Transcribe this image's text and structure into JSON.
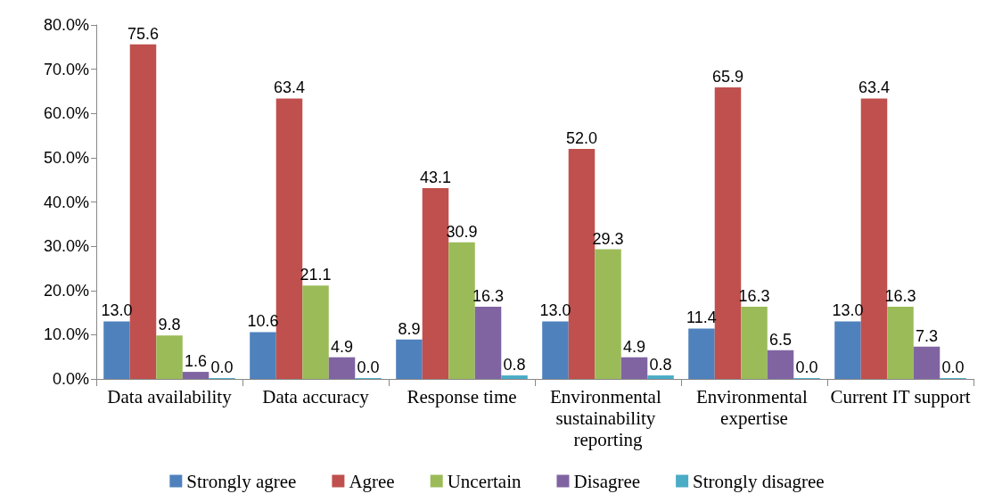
{
  "chart_data": {
    "type": "bar",
    "categories": [
      "Data availability",
      "Data accuracy",
      "Response time",
      "Environmental sustainability reporting",
      "Environmental expertise",
      "Current IT support"
    ],
    "series": [
      {
        "name": "Strongly agree",
        "color": "#4f81bd",
        "values": [
          13.0,
          10.6,
          8.9,
          13.0,
          11.4,
          13.0
        ],
        "value_labels": [
          "13.0",
          "10.6",
          "8.9",
          "13.0",
          "11.4",
          "13.0"
        ]
      },
      {
        "name": "Agree",
        "color": "#c0504d",
        "values": [
          75.6,
          63.4,
          43.1,
          52.0,
          65.9,
          63.4
        ],
        "value_labels": [
          "75.6",
          "63.4",
          "43.1",
          "52.0",
          "65.9",
          "63.4"
        ]
      },
      {
        "name": "Uncertain",
        "color": "#9bbb59",
        "values": [
          9.8,
          21.1,
          30.9,
          29.3,
          16.3,
          16.3
        ],
        "value_labels": [
          "9.8",
          "21.1",
          "30.9",
          "29.3",
          "16.3",
          "16.3"
        ]
      },
      {
        "name": "Disagree",
        "color": "#8064a2",
        "values": [
          1.6,
          4.9,
          16.3,
          4.9,
          6.5,
          7.3
        ],
        "value_labels": [
          "1.6",
          "4.9",
          "16.3",
          "4.9",
          "6.5",
          "7.3"
        ]
      },
      {
        "name": "Strongly disagree",
        "color": "#4bacc6",
        "values": [
          0.0,
          0.0,
          0.8,
          0.8,
          0.0,
          0.0
        ],
        "value_labels": [
          "0.0",
          "0.0",
          "0.8",
          "0.8",
          "0.0",
          "0.0"
        ]
      }
    ],
    "ylim": [
      0,
      80
    ],
    "yticks": [
      {
        "value": 0,
        "label": "0.0%"
      },
      {
        "value": 10,
        "label": "10.0%"
      },
      {
        "value": 20,
        "label": "20.0%"
      },
      {
        "value": 30,
        "label": "30.0%"
      },
      {
        "value": 40,
        "label": "40.0%"
      },
      {
        "value": 50,
        "label": "50.0%"
      },
      {
        "value": 60,
        "label": "60.0%"
      },
      {
        "value": 70,
        "label": "70.0%"
      },
      {
        "value": 80,
        "label": "80.0%"
      }
    ],
    "grid": false,
    "legend": "bottom"
  }
}
